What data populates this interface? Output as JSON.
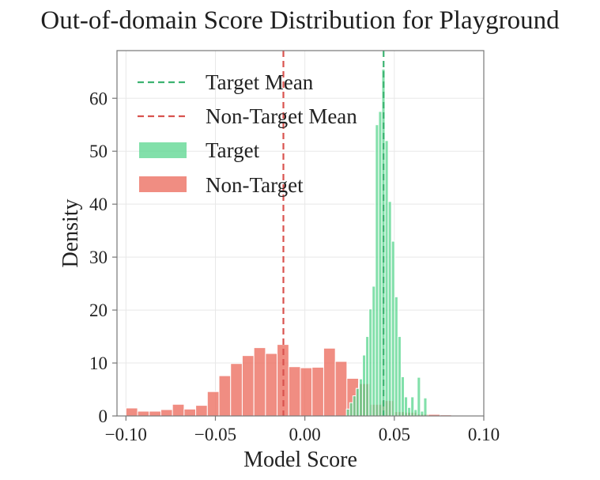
{
  "chart_data": {
    "type": "histogram",
    "title": "Out-of-domain Score Distribution for Playground",
    "xlabel": "Model Score",
    "ylabel": "Density",
    "xlim": [
      -0.105,
      0.1
    ],
    "ylim": [
      0,
      69
    ],
    "xticks": [
      -0.1,
      -0.05,
      0.0,
      0.05,
      0.1
    ],
    "xtick_labels": [
      "−0.10",
      "−0.05",
      "0.00",
      "0.05",
      "0.10"
    ],
    "yticks": [
      0,
      10,
      20,
      30,
      40,
      50,
      60
    ],
    "ytick_labels": [
      "0",
      "10",
      "20",
      "30",
      "40",
      "50",
      "60"
    ],
    "grid": true,
    "legend_position": "top-left",
    "series": [
      {
        "name": "Non-Target",
        "kind": "histogram",
        "color": "#ec7063",
        "opacity": 0.8,
        "bin_width": 0.00652,
        "bins": [
          {
            "x0": -0.1,
            "h": 1.5
          },
          {
            "x0": -0.0935,
            "h": 0.9
          },
          {
            "x0": -0.087,
            "h": 0.9
          },
          {
            "x0": -0.0805,
            "h": 1.2
          },
          {
            "x0": -0.074,
            "h": 2.2
          },
          {
            "x0": -0.0675,
            "h": 1.3
          },
          {
            "x0": -0.061,
            "h": 2.0
          },
          {
            "x0": -0.0545,
            "h": 4.6
          },
          {
            "x0": -0.048,
            "h": 7.6
          },
          {
            "x0": -0.0415,
            "h": 9.9
          },
          {
            "x0": -0.035,
            "h": 11.4
          },
          {
            "x0": -0.0285,
            "h": 12.9
          },
          {
            "x0": -0.022,
            "h": 11.8
          },
          {
            "x0": -0.0155,
            "h": 13.5
          },
          {
            "x0": -0.009,
            "h": 9.3
          },
          {
            "x0": -0.0025,
            "h": 9.1
          },
          {
            "x0": 0.004,
            "h": 9.2
          },
          {
            "x0": 0.0105,
            "h": 12.8
          },
          {
            "x0": 0.017,
            "h": 10.3
          },
          {
            "x0": 0.0235,
            "h": 7.1
          },
          {
            "x0": 0.03,
            "h": 6.1
          },
          {
            "x0": 0.0365,
            "h": 2.2
          },
          {
            "x0": 0.043,
            "h": 2.9
          },
          {
            "x0": 0.0495,
            "h": 0.8
          },
          {
            "x0": 0.056,
            "h": 0.7
          },
          {
            "x0": 0.0625,
            "h": 0.35
          },
          {
            "x0": 0.069,
            "h": 0.3
          },
          {
            "x0": 0.0755,
            "h": 0.2
          },
          {
            "x0": 0.082,
            "h": 0.15
          }
        ]
      },
      {
        "name": "Target",
        "kind": "histogram",
        "color": "#58d68d",
        "opacity": 0.75,
        "bin_width": 0.0018,
        "bins": [
          {
            "x0": 0.0232,
            "h": 1.3
          },
          {
            "x0": 0.025,
            "h": 2.5
          },
          {
            "x0": 0.0268,
            "h": 3.8
          },
          {
            "x0": 0.0286,
            "h": 5.2
          },
          {
            "x0": 0.0304,
            "h": 7.0
          },
          {
            "x0": 0.0322,
            "h": 11.5
          },
          {
            "x0": 0.034,
            "h": 15.0
          },
          {
            "x0": 0.0358,
            "h": 20.2
          },
          {
            "x0": 0.0376,
            "h": 24.5
          },
          {
            "x0": 0.0394,
            "h": 55.0
          },
          {
            "x0": 0.0412,
            "h": 57.5
          },
          {
            "x0": 0.043,
            "h": 65.5
          },
          {
            "x0": 0.0448,
            "h": 52.0
          },
          {
            "x0": 0.0466,
            "h": 40.5
          },
          {
            "x0": 0.0484,
            "h": 33.0
          },
          {
            "x0": 0.0502,
            "h": 22.5
          },
          {
            "x0": 0.052,
            "h": 15.0
          },
          {
            "x0": 0.0538,
            "h": 7.4
          },
          {
            "x0": 0.0556,
            "h": 3.6
          },
          {
            "x0": 0.0574,
            "h": 1.6
          },
          {
            "x0": 0.0592,
            "h": 3.6
          },
          {
            "x0": 0.061,
            "h": 1.2
          },
          {
            "x0": 0.0628,
            "h": 7.3
          },
          {
            "x0": 0.0646,
            "h": 0.9
          },
          {
            "x0": 0.0664,
            "h": 3.4
          }
        ]
      },
      {
        "name": "Target Mean",
        "kind": "vline",
        "x": 0.044,
        "color": "#3cb371",
        "linestyle": "dashed"
      },
      {
        "name": "Non-Target Mean",
        "kind": "vline",
        "x": -0.012,
        "color": "#d9534f",
        "linestyle": "dashed"
      }
    ],
    "legend": [
      {
        "label": "Target Mean",
        "type": "line",
        "color": "#3cb371"
      },
      {
        "label": "Non-Target Mean",
        "type": "line",
        "color": "#d9534f"
      },
      {
        "label": "Target",
        "type": "patch",
        "color": "#58d68d"
      },
      {
        "label": "Non-Target",
        "type": "patch",
        "color": "#ec7063"
      }
    ],
    "colors": {
      "grid": "#e8e8e8",
      "axes": "#777777",
      "text": "#222222",
      "bar_edge": "#ffffff"
    }
  }
}
